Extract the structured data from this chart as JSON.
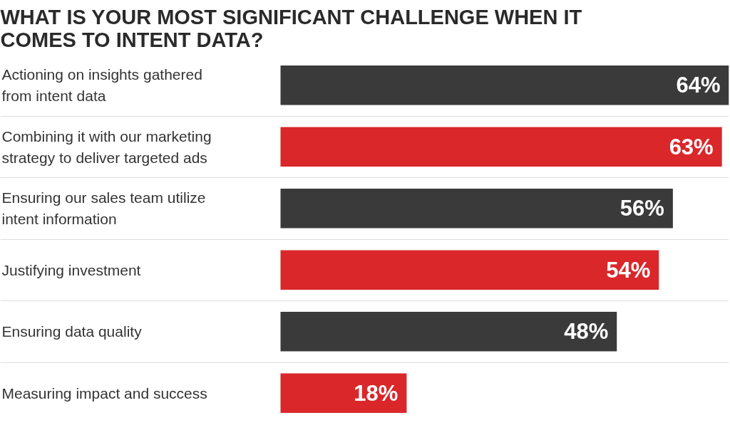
{
  "chart_data": {
    "type": "bar",
    "orientation": "horizontal",
    "title": "WHAT IS YOUR MOST SIGNIFICANT CHALLENGE WHEN IT COMES TO INTENT DATA?",
    "categories": [
      "Actioning on insights gathered from intent data",
      "Combining it with our marketing strategy to deliver targeted ads",
      "Ensuring our sales team utilize intent information",
      "Justifying investment",
      "Ensuring data quality",
      "Measuring impact and success"
    ],
    "values": [
      64,
      63,
      56,
      54,
      48,
      18
    ],
    "colors": [
      "#3a3a3a",
      "#d9272a",
      "#3a3a3a",
      "#d9272a",
      "#3a3a3a",
      "#d9272a"
    ],
    "value_labels": [
      "64%",
      "63%",
      "56%",
      "54%",
      "48%",
      "18%"
    ],
    "grid": "y"
  }
}
